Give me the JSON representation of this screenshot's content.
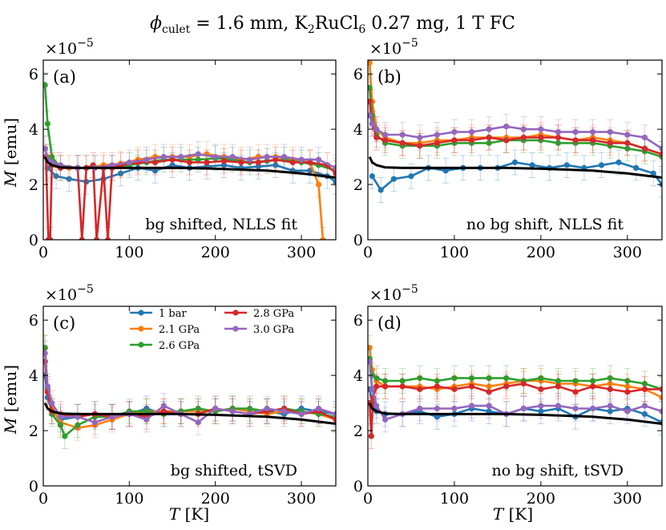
{
  "figure": {
    "title": "ϕ",
    "title_sub": "culet",
    "title_rest": " = 1.6 mm, K",
    "title_k_sub": "2",
    "title_mid": "RuCl",
    "title_cl_sub": "6",
    "title_end": " 0.27 mg, 1 T FC"
  },
  "axes_text": {
    "ylabel_M": "M",
    "ylabel_unit": " [emu]",
    "xlabel_T": "T",
    "xlabel_unit": " [K]",
    "offset_base": "×10",
    "offset_exp": "−5"
  },
  "colors": {
    "1 bar": "#1f77b4",
    "2.1 GPa": "#ff7f0e",
    "2.6 GPa": "#2ca02c",
    "2.8 GPa": "#d62728",
    "3.0 GPa": "#9467bd",
    "fit": "#000000"
  },
  "legend": [
    "1 bar",
    "2.1 GPa",
    "2.6 GPa",
    "2.8 GPa",
    "3.0 GPa"
  ],
  "chart_data": [
    {
      "type": "line",
      "panel": "(a)",
      "annotation": "bg shifted, NLLS fit",
      "xlim": [
        0,
        340
      ],
      "ylim": [
        0,
        6.5
      ],
      "xticks": [
        0,
        100,
        200,
        300
      ],
      "yticks": [
        0,
        2,
        4,
        6
      ],
      "xlabel": "",
      "ylabel": "M [emu]",
      "fit_curve": {
        "x": [
          2,
          5,
          10,
          20,
          40,
          100,
          160,
          200,
          260,
          300,
          340
        ],
        "y": [
          3.0,
          2.8,
          2.7,
          2.62,
          2.6,
          2.6,
          2.6,
          2.57,
          2.5,
          2.4,
          2.25
        ]
      },
      "series": [
        {
          "name": "1 bar",
          "x": [
            5,
            15,
            30,
            50,
            70,
            90,
            110,
            130,
            150,
            170,
            190,
            210,
            230,
            250,
            270,
            290,
            310,
            330,
            340
          ],
          "y": [
            2.6,
            2.3,
            2.2,
            2.1,
            2.2,
            2.4,
            2.6,
            2.5,
            2.7,
            2.6,
            2.65,
            2.7,
            2.6,
            2.65,
            2.7,
            2.5,
            2.5,
            2.3,
            2.1
          ]
        },
        {
          "name": "2.1 GPa",
          "x": [
            5,
            15,
            30,
            50,
            70,
            90,
            110,
            130,
            150,
            170,
            190,
            210,
            230,
            250,
            270,
            290,
            310,
            320,
            325
          ],
          "y": [
            3.0,
            2.7,
            2.6,
            2.6,
            2.7,
            2.75,
            2.9,
            3.0,
            3.0,
            3.0,
            3.1,
            3.0,
            2.9,
            3.0,
            3.0,
            2.9,
            2.8,
            2.0,
            0.0
          ]
        },
        {
          "name": "2.6 GPa",
          "x": [
            2,
            5,
            10,
            20,
            40,
            60,
            80,
            100,
            120,
            140,
            160,
            180,
            200,
            220,
            240,
            260,
            280,
            300,
            320,
            340
          ],
          "y": [
            5.6,
            4.2,
            3.0,
            2.6,
            2.6,
            2.6,
            2.6,
            2.7,
            2.8,
            2.9,
            2.9,
            2.9,
            2.95,
            2.9,
            2.8,
            2.85,
            2.9,
            2.8,
            2.7,
            2.5
          ]
        },
        {
          "name": "2.8 GPa",
          "x": [
            3,
            6,
            8,
            10,
            20,
            40,
            45,
            50,
            58,
            62,
            70,
            75,
            80,
            90,
            110,
            130,
            150,
            170,
            190,
            210,
            230,
            250,
            270,
            290,
            310,
            330,
            340
          ],
          "y": [
            3.0,
            0.0,
            0.0,
            2.7,
            2.6,
            2.6,
            0.0,
            2.6,
            2.7,
            0.0,
            2.6,
            0.0,
            2.6,
            2.7,
            2.8,
            2.8,
            2.9,
            2.8,
            2.8,
            2.85,
            2.8,
            2.8,
            2.9,
            2.8,
            2.8,
            2.7,
            2.4
          ]
        },
        {
          "name": "3.0 GPa",
          "x": [
            2,
            5,
            10,
            20,
            40,
            60,
            80,
            100,
            120,
            140,
            160,
            180,
            200,
            220,
            240,
            260,
            280,
            300,
            320,
            340
          ],
          "y": [
            3.3,
            2.9,
            2.8,
            2.7,
            2.6,
            2.6,
            2.7,
            2.8,
            2.9,
            3.0,
            3.0,
            3.1,
            3.0,
            3.0,
            2.9,
            3.0,
            3.0,
            2.9,
            2.9,
            2.6
          ]
        }
      ]
    },
    {
      "type": "line",
      "panel": "(b)",
      "annotation": "no bg shift, NLLS fit",
      "xlim": [
        0,
        340
      ],
      "ylim": [
        0,
        6.5
      ],
      "xticks": [
        0,
        100,
        200,
        300
      ],
      "yticks": [
        0,
        2,
        4,
        6
      ],
      "xlabel": "",
      "ylabel": "",
      "fit_curve": {
        "x": [
          2,
          5,
          10,
          20,
          40,
          100,
          160,
          200,
          260,
          300,
          340
        ],
        "y": [
          3.0,
          2.8,
          2.7,
          2.62,
          2.6,
          2.6,
          2.6,
          2.57,
          2.5,
          2.4,
          2.25
        ]
      },
      "series": [
        {
          "name": "1 bar",
          "x": [
            5,
            15,
            30,
            50,
            70,
            90,
            110,
            130,
            150,
            170,
            190,
            210,
            230,
            250,
            270,
            290,
            310,
            330,
            340
          ],
          "y": [
            2.3,
            1.8,
            2.2,
            2.3,
            2.6,
            2.5,
            2.6,
            2.6,
            2.6,
            2.8,
            2.7,
            2.6,
            2.7,
            2.6,
            2.7,
            2.8,
            2.6,
            2.4,
            2.0
          ]
        },
        {
          "name": "2.1 GPa",
          "x": [
            2,
            5,
            10,
            20,
            40,
            60,
            80,
            100,
            120,
            140,
            160,
            180,
            200,
            220,
            240,
            260,
            280,
            300,
            320,
            340
          ],
          "y": [
            6.4,
            5.0,
            4.0,
            3.7,
            3.5,
            3.5,
            3.6,
            3.6,
            3.7,
            3.7,
            3.7,
            3.7,
            3.8,
            3.7,
            3.6,
            3.7,
            3.6,
            3.5,
            3.3,
            3.1
          ]
        },
        {
          "name": "2.6 GPa",
          "x": [
            2,
            5,
            10,
            20,
            40,
            60,
            80,
            100,
            120,
            140,
            160,
            180,
            200,
            220,
            240,
            260,
            280,
            300,
            320,
            340
          ],
          "y": [
            5.5,
            4.5,
            3.8,
            3.5,
            3.4,
            3.4,
            3.4,
            3.5,
            3.5,
            3.5,
            3.6,
            3.6,
            3.6,
            3.5,
            3.5,
            3.5,
            3.4,
            3.3,
            3.2,
            3.0
          ]
        },
        {
          "name": "2.8 GPa",
          "x": [
            2,
            5,
            10,
            20,
            40,
            60,
            80,
            100,
            120,
            140,
            160,
            180,
            200,
            220,
            240,
            260,
            280,
            300,
            320,
            340
          ],
          "y": [
            5.0,
            4.2,
            3.7,
            3.6,
            3.5,
            3.4,
            3.5,
            3.6,
            3.6,
            3.7,
            3.6,
            3.7,
            3.7,
            3.7,
            3.6,
            3.6,
            3.5,
            3.5,
            3.3,
            3.1
          ]
        },
        {
          "name": "3.0 GPa",
          "x": [
            2,
            5,
            10,
            20,
            40,
            60,
            80,
            100,
            120,
            140,
            160,
            180,
            200,
            220,
            240,
            260,
            280,
            300,
            320,
            340
          ],
          "y": [
            4.5,
            4.2,
            4.0,
            3.8,
            3.8,
            3.7,
            3.8,
            3.9,
            3.9,
            4.0,
            4.1,
            4.0,
            4.0,
            3.9,
            3.9,
            3.9,
            3.9,
            3.8,
            3.7,
            3.3
          ]
        }
      ]
    },
    {
      "type": "line",
      "panel": "(c)",
      "annotation": "bg shifted, tSVD",
      "xlim": [
        0,
        340
      ],
      "ylim": [
        0,
        6.5
      ],
      "xticks": [
        0,
        100,
        200,
        300
      ],
      "yticks": [
        0,
        2,
        4,
        6
      ],
      "xlabel": "T [K]",
      "ylabel": "M [emu]",
      "fit_curve": {
        "x": [
          2,
          5,
          10,
          20,
          40,
          100,
          160,
          200,
          260,
          300,
          340
        ],
        "y": [
          3.0,
          2.8,
          2.7,
          2.62,
          2.6,
          2.6,
          2.6,
          2.57,
          2.5,
          2.4,
          2.25
        ]
      },
      "series": [
        {
          "name": "1 bar",
          "x": [
            2,
            5,
            10,
            20,
            40,
            60,
            80,
            100,
            120,
            140,
            160,
            180,
            200,
            220,
            240,
            260,
            280,
            300,
            320,
            340
          ],
          "y": [
            4.0,
            3.2,
            2.7,
            2.4,
            2.5,
            2.6,
            2.5,
            2.6,
            2.8,
            2.6,
            2.7,
            2.7,
            2.7,
            2.8,
            2.7,
            2.7,
            2.6,
            2.8,
            2.7,
            2.6
          ]
        },
        {
          "name": "2.1 GPa",
          "x": [
            2,
            5,
            10,
            20,
            40,
            60,
            80,
            100,
            120,
            140,
            160,
            180,
            200,
            220,
            240,
            260,
            280,
            300,
            320,
            340
          ],
          "y": [
            5.0,
            3.5,
            2.8,
            2.3,
            2.1,
            2.2,
            2.4,
            2.6,
            2.7,
            2.7,
            2.7,
            2.7,
            2.7,
            2.8,
            2.7,
            2.6,
            2.7,
            2.7,
            2.6,
            2.4
          ]
        },
        {
          "name": "2.6 GPa",
          "x": [
            2,
            5,
            10,
            20,
            25,
            40,
            60,
            80,
            100,
            120,
            140,
            160,
            180,
            200,
            220,
            240,
            260,
            280,
            300,
            320,
            340
          ],
          "y": [
            5.0,
            3.5,
            2.6,
            2.2,
            1.8,
            2.2,
            2.5,
            2.5,
            2.7,
            2.7,
            2.6,
            2.7,
            2.8,
            2.7,
            2.8,
            2.8,
            2.7,
            2.8,
            2.7,
            2.6,
            2.5
          ]
        },
        {
          "name": "2.8 GPa",
          "x": [
            2,
            5,
            10,
            20,
            40,
            60,
            80,
            100,
            120,
            140,
            160,
            180,
            200,
            220,
            240,
            260,
            280,
            300,
            320,
            340
          ],
          "y": [
            4.5,
            3.4,
            2.7,
            2.6,
            2.5,
            2.6,
            2.5,
            2.6,
            2.5,
            2.7,
            2.6,
            2.6,
            2.8,
            2.7,
            2.6,
            2.7,
            2.8,
            2.6,
            2.7,
            2.4
          ]
        },
        {
          "name": "3.0 GPa",
          "x": [
            2,
            5,
            10,
            20,
            40,
            60,
            80,
            100,
            120,
            140,
            160,
            180,
            200,
            220,
            240,
            260,
            280,
            300,
            320,
            340
          ],
          "y": [
            4.8,
            3.6,
            3.0,
            2.5,
            2.5,
            2.3,
            2.5,
            2.6,
            2.4,
            2.9,
            2.6,
            2.3,
            2.8,
            2.7,
            2.6,
            2.8,
            2.7,
            2.6,
            2.8,
            2.6
          ]
        }
      ]
    },
    {
      "type": "line",
      "panel": "(d)",
      "annotation": "no bg shift, tSVD",
      "xlim": [
        0,
        340
      ],
      "ylim": [
        0,
        6.5
      ],
      "xticks": [
        0,
        100,
        200,
        300
      ],
      "yticks": [
        0,
        2,
        4,
        6
      ],
      "xlabel": "T [K]",
      "ylabel": "",
      "fit_curve": {
        "x": [
          2,
          5,
          10,
          20,
          40,
          100,
          160,
          200,
          260,
          300,
          340
        ],
        "y": [
          3.0,
          2.8,
          2.7,
          2.62,
          2.6,
          2.6,
          2.6,
          2.57,
          2.5,
          2.4,
          2.25
        ]
      },
      "series": [
        {
          "name": "1 bar",
          "x": [
            2,
            5,
            10,
            20,
            40,
            60,
            80,
            100,
            120,
            140,
            160,
            180,
            200,
            220,
            240,
            260,
            280,
            300,
            320,
            340
          ],
          "y": [
            3.5,
            3.0,
            2.7,
            2.6,
            2.6,
            2.7,
            2.5,
            2.6,
            2.8,
            2.7,
            2.6,
            2.8,
            2.7,
            2.8,
            2.5,
            2.8,
            2.7,
            2.8,
            2.6,
            2.3
          ]
        },
        {
          "name": "2.1 GPa",
          "x": [
            2,
            5,
            10,
            20,
            40,
            60,
            80,
            100,
            120,
            140,
            160,
            180,
            200,
            220,
            240,
            260,
            280,
            300,
            320,
            340
          ],
          "y": [
            5.0,
            4.2,
            3.8,
            3.6,
            3.6,
            3.6,
            3.5,
            3.6,
            3.7,
            3.6,
            3.7,
            3.8,
            3.8,
            3.7,
            3.7,
            3.6,
            3.7,
            3.6,
            3.5,
            3.2
          ]
        },
        {
          "name": "2.6 GPa",
          "x": [
            2,
            5,
            10,
            20,
            40,
            60,
            80,
            100,
            120,
            140,
            160,
            180,
            200,
            220,
            240,
            260,
            280,
            300,
            320,
            340
          ],
          "y": [
            4.6,
            4.0,
            3.9,
            3.8,
            3.8,
            3.9,
            3.8,
            3.9,
            3.9,
            3.9,
            3.9,
            3.8,
            3.9,
            3.8,
            3.8,
            3.8,
            3.9,
            3.8,
            3.7,
            3.5
          ]
        },
        {
          "name": "2.8 GPa",
          "x": [
            2,
            4,
            6,
            10,
            20,
            40,
            60,
            80,
            100,
            120,
            140,
            160,
            180,
            200,
            220,
            240,
            260,
            280,
            300,
            320,
            340
          ],
          "y": [
            3.0,
            1.8,
            3.2,
            3.6,
            3.6,
            3.6,
            3.5,
            3.6,
            3.5,
            3.6,
            3.4,
            3.6,
            3.7,
            3.5,
            3.6,
            3.4,
            3.6,
            3.5,
            3.4,
            3.5,
            3.5
          ]
        },
        {
          "name": "3.0 GPa",
          "x": [
            2,
            5,
            10,
            20,
            40,
            60,
            80,
            100,
            120,
            140,
            160,
            180,
            200,
            220,
            240,
            260,
            280,
            300,
            320,
            340
          ],
          "y": [
            4.5,
            3.5,
            2.9,
            2.4,
            2.6,
            2.8,
            2.8,
            2.8,
            2.9,
            2.9,
            2.6,
            2.8,
            2.9,
            2.9,
            2.8,
            2.8,
            2.9,
            2.7,
            2.9,
            2.7
          ]
        }
      ]
    }
  ]
}
